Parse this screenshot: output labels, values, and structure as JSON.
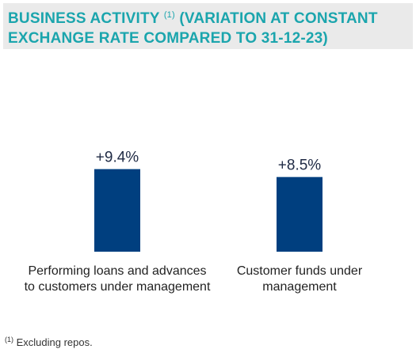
{
  "title": {
    "text_before": "BUSINESS ACTIVITY ",
    "marker": "(1)",
    "text_after": " (VARIATION AT CONSTANT EXCHANGE RATE COMPARED TO 31-12-23)"
  },
  "colors": {
    "title": "#1ba5ad",
    "bar": "#003f7f",
    "band": "#eaeaea"
  },
  "chart_data": {
    "type": "bar",
    "categories": [
      "Performing loans and advances to customers under management",
      "Customer funds under management"
    ],
    "values": [
      9.4,
      8.5
    ],
    "data_labels": [
      "+9.4%",
      "+8.5%"
    ],
    "unit": "%",
    "title": "BUSINESS ACTIVITY (1) (VARIATION AT CONSTANT EXCHANGE RATE COMPARED TO 31-12-23)",
    "xlabel": "",
    "ylabel": "",
    "grid": false
  },
  "footnote": {
    "marker": "(1)",
    "text": " Excluding repos."
  }
}
